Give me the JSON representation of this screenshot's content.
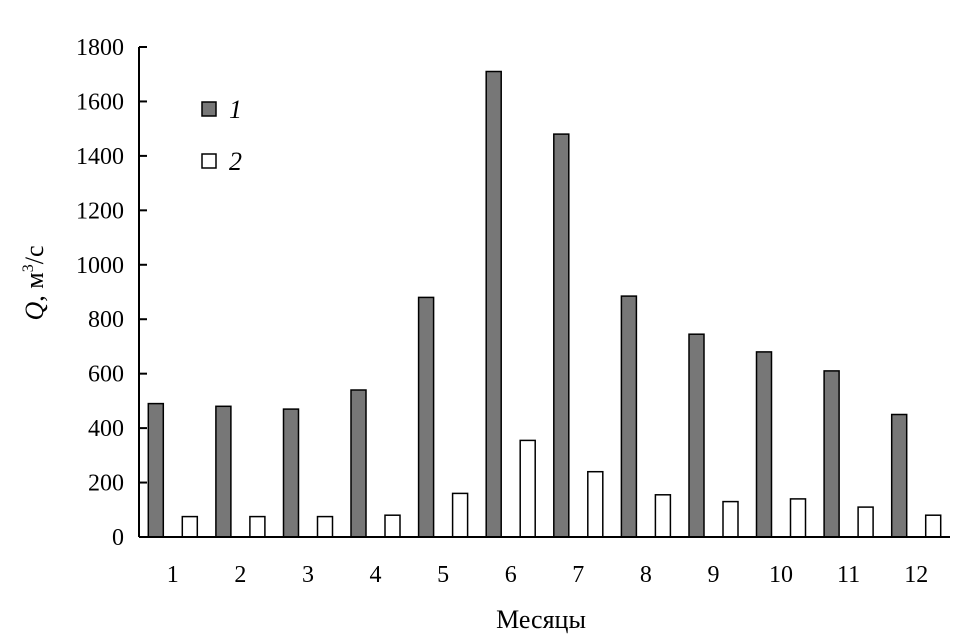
{
  "chart_data": {
    "type": "bar",
    "title": "",
    "xlabel": "Месяцы",
    "ylabel": {
      "symbol": "Q",
      "sep": ", ",
      "unit_base": "м",
      "unit_exp": "3",
      "unit_tail": "/с"
    },
    "categories": [
      "1",
      "2",
      "3",
      "4",
      "5",
      "6",
      "7",
      "8",
      "9",
      "10",
      "11",
      "12"
    ],
    "ylim": [
      0,
      1800
    ],
    "yticks": [
      "0",
      "200",
      "400",
      "600",
      "800",
      "1000",
      "1200",
      "1400",
      "1600",
      "1800"
    ],
    "grid": false,
    "legend_position": "top-left",
    "series": [
      {
        "name": "1",
        "color": "#777777",
        "values": [
          490,
          480,
          470,
          540,
          880,
          1710,
          1480,
          885,
          745,
          680,
          610,
          450
        ]
      },
      {
        "name": "2",
        "color": "#ffffff",
        "values": [
          75,
          75,
          75,
          80,
          160,
          355,
          240,
          155,
          130,
          140,
          110,
          80
        ]
      }
    ]
  }
}
